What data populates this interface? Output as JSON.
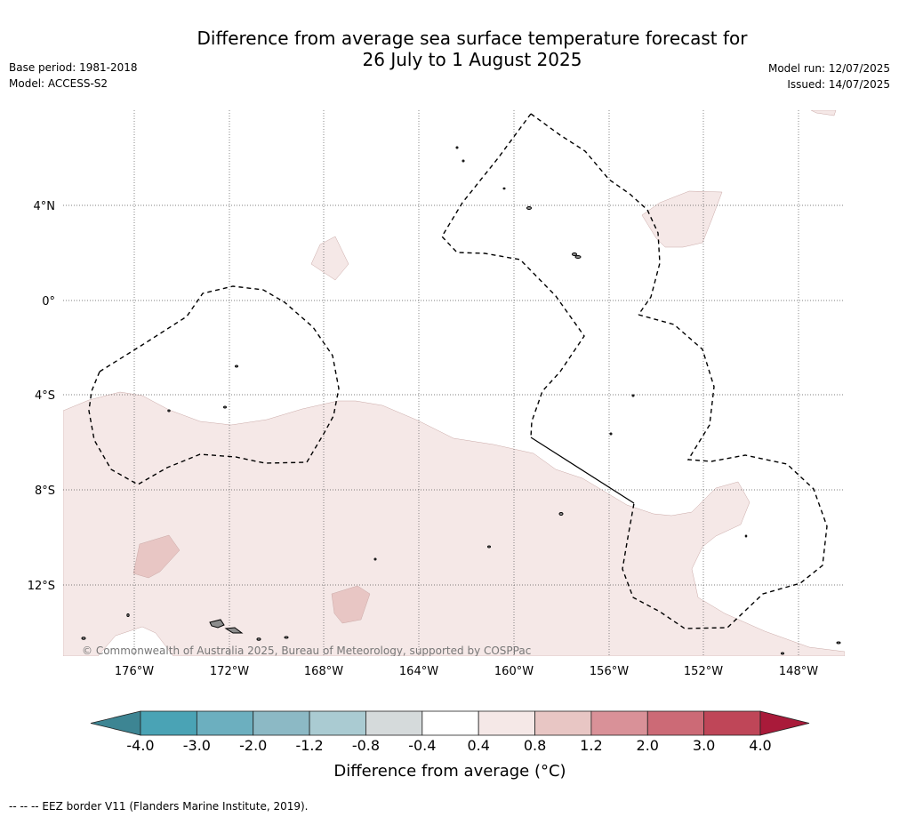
{
  "header": {
    "title_line1": "Difference from average sea surface temperature forecast for",
    "title_line2": "26 July to 1 August 2025",
    "base_period": "Base period: 1981-2018",
    "model": "Model: ACCESS-S2",
    "model_run": "Model run: 12/07/2025",
    "issued": "Issued: 14/07/2025"
  },
  "map": {
    "copyright": "© Commonwealth of Australia 2025, Bureau of Meteorology, supported by COSPPac",
    "lat_labels": [
      "4°N",
      "0°",
      "4°S",
      "8°S",
      "12°S"
    ],
    "lon_labels": [
      "176°W",
      "172°W",
      "168°W",
      "164°W",
      "160°W",
      "156°W",
      "152°W",
      "148°W"
    ],
    "extent": {
      "lon": [
        -179,
        -146
      ],
      "lat": [
        -15,
        8
      ]
    },
    "colors": {
      "anomaly_0_4_0_8": "#f5e8e7",
      "anomaly_0_8_1_2": "#e8c6c4",
      "land": "#8c8c8c",
      "eez_border": "#000000"
    }
  },
  "colorbar": {
    "ticks": [
      "-4.0",
      "-3.0",
      "-2.0",
      "-1.2",
      "-0.8",
      "-0.4",
      "0.4",
      "0.8",
      "1.2",
      "2.0",
      "3.0",
      "4.0"
    ],
    "colors": [
      "#3d8593",
      "#4aa3b5",
      "#6cafbf",
      "#8cb9c5",
      "#aacbd2",
      "#d5dadb",
      "#ffffff",
      "#f5e8e7",
      "#e8c6c4",
      "#d99198",
      "#cc6a76",
      "#bf4658",
      "#a91a3a"
    ],
    "label": "Difference from average (°C)"
  },
  "footnote": "--  --  -- EEZ border V11 (Flanders Marine Institute, 2019)."
}
